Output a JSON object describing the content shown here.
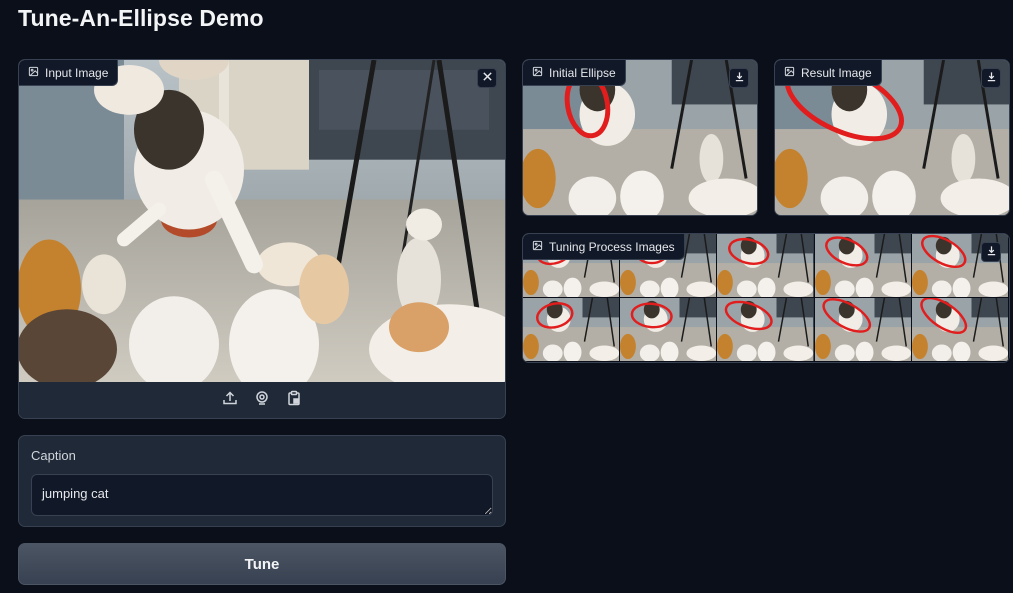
{
  "app": {
    "title": "Tune-An-Ellipse Demo"
  },
  "input_image": {
    "label": "Input Image",
    "icon": "image-icon",
    "close_icon": "close-icon",
    "sources": [
      "upload-icon",
      "webcam-icon",
      "clipboard-icon"
    ]
  },
  "initial_ellipse": {
    "label": "Initial Ellipse",
    "icon": "image-icon",
    "action_icon": "download-icon"
  },
  "result_image": {
    "label": "Result Image",
    "icon": "image-icon",
    "action_icon": "download-icon"
  },
  "tuning_gallery": {
    "label": "Tuning Process Images",
    "icon": "image-icon",
    "action_icon": "download-icon",
    "thumbnail_count": 10
  },
  "caption": {
    "label": "Caption",
    "value": "jumping cat"
  },
  "tune_button": {
    "label": "Tune"
  },
  "colors": {
    "background": "#0b0f19",
    "panel": "#1f2937",
    "border": "#374151",
    "ellipse": "#e11d1d"
  }
}
